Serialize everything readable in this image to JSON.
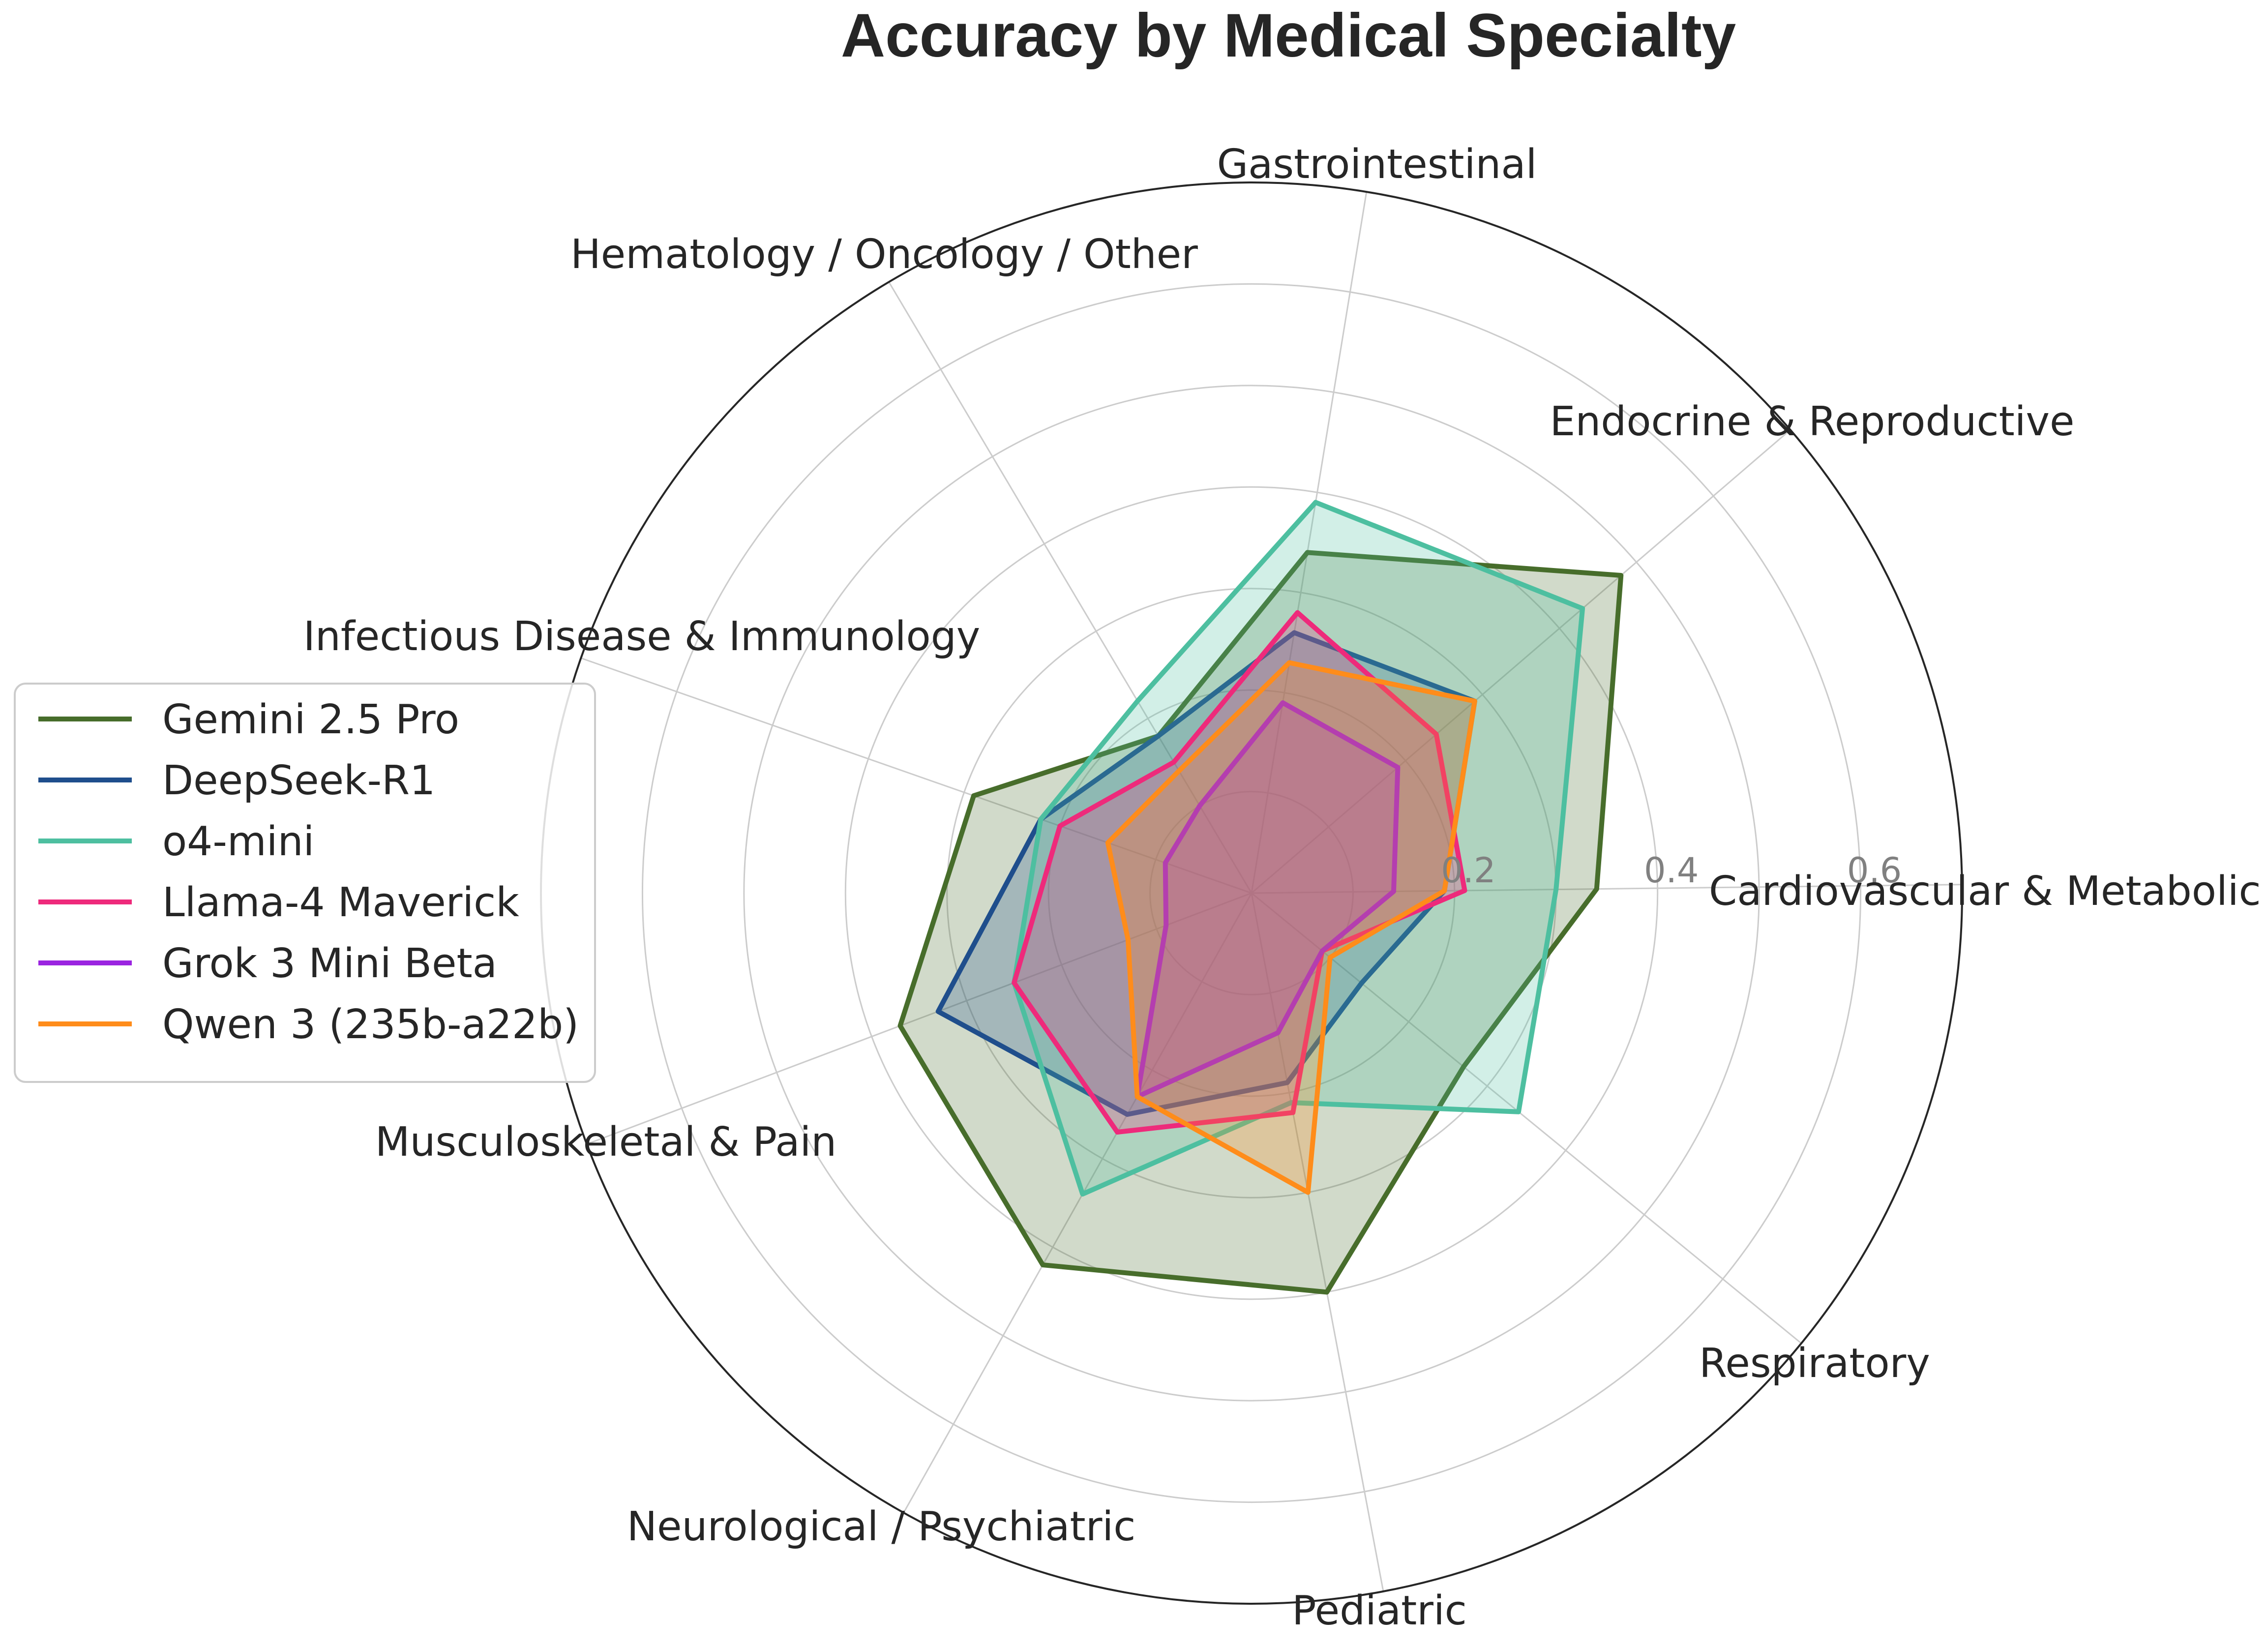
{
  "chart_data": {
    "type": "radar",
    "title": "Accuracy by Medical Specialty",
    "categories": [
      "Cardiovascular & Metabolic",
      "Endocrine & Reproductive",
      "Gastrointestinal",
      "Hematology / Oncology / Other",
      "Infectious Disease & Immunology",
      "Musculoskeletal & Pain",
      "Neurological / Psychiatric",
      "Pediatric",
      "Respiratory"
    ],
    "r_ticks": [
      0.2,
      0.4,
      0.6
    ],
    "r_tick_labels": [
      "0.2",
      "0.4",
      "0.6"
    ],
    "rlim": [
      0,
      0.7
    ],
    "grid": true,
    "legend_position": "left",
    "series": [
      {
        "name": "Gemini 2.5 Pro",
        "color": "#476d2b",
        "values": [
          0.34,
          0.48,
          0.34,
          0.18,
          0.29,
          0.37,
          0.42,
          0.4,
          0.27
        ]
      },
      {
        "name": "DeepSeek-R1",
        "color": "#1f4e8c",
        "values": [
          0.19,
          0.29,
          0.26,
          0.18,
          0.22,
          0.33,
          0.25,
          0.19,
          0.14
        ]
      },
      {
        "name": "o4-mini",
        "color": "#4dbfa0",
        "values": [
          0.3,
          0.43,
          0.39,
          0.22,
          0.22,
          0.25,
          0.34,
          0.21,
          0.34
        ]
      },
      {
        "name": "Llama-4 Maverick",
        "color": "#ee2a7b",
        "values": [
          0.21,
          0.24,
          0.28,
          0.15,
          0.2,
          0.25,
          0.27,
          0.22,
          0.09
        ]
      },
      {
        "name": "Grok 3 Mini Beta",
        "color": "#9b24e0",
        "values": [
          0.14,
          0.19,
          0.19,
          0.1,
          0.09,
          0.09,
          0.23,
          0.14,
          0.09
        ]
      },
      {
        "name": "Qwen 3 (235b-a22b)",
        "color": "#ff8c1a",
        "values": [
          0.19,
          0.29,
          0.23,
          0.14,
          0.15,
          0.13,
          0.23,
          0.3,
          0.1
        ]
      }
    ]
  }
}
